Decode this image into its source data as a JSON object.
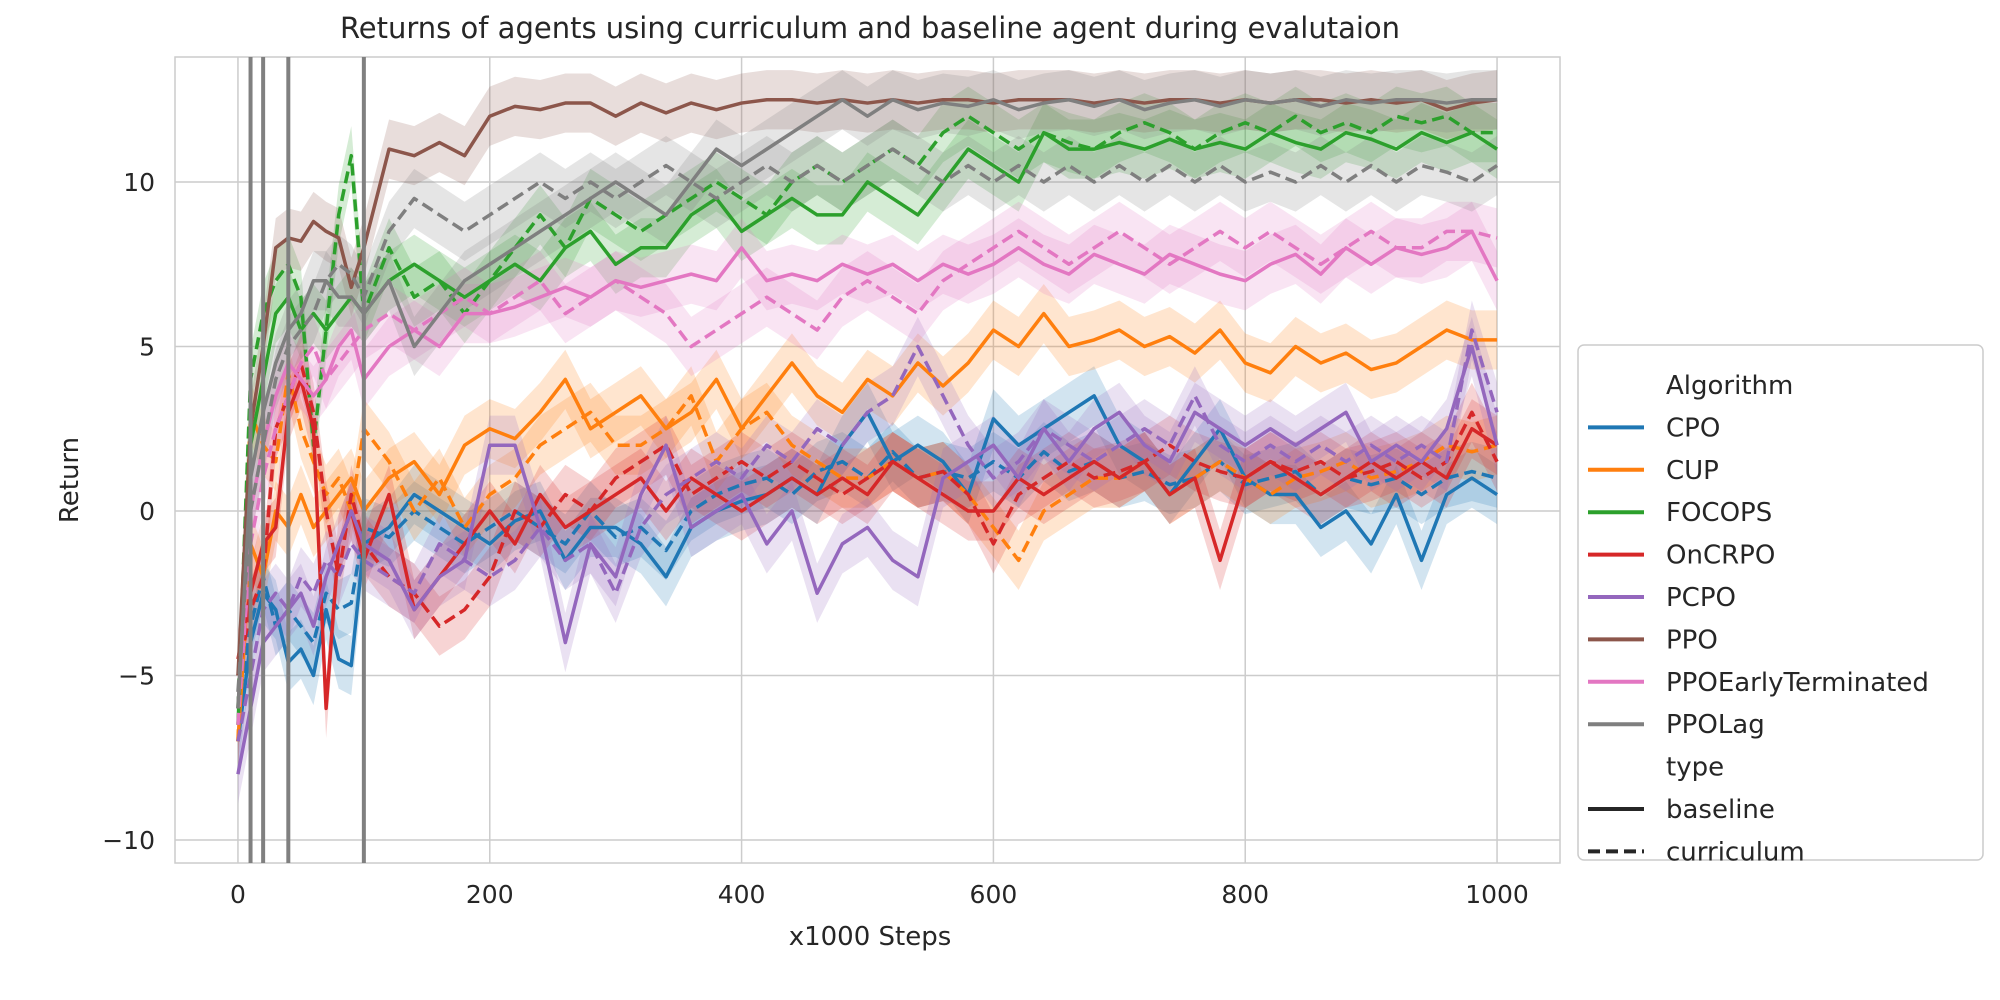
{
  "chart_data": {
    "type": "line",
    "title": "Returns of agents using curriculum and baseline agent during evalutaion",
    "xlabel": "x1000 Steps",
    "ylabel": "Return",
    "xlim": [
      -50,
      1050
    ],
    "ylim": [
      -10.7,
      13.8
    ],
    "xticks": [
      0,
      200,
      400,
      600,
      800,
      1000
    ],
    "xtick_labels": [
      "0",
      "200",
      "400",
      "600",
      "800",
      "1000"
    ],
    "yticks": [
      -10,
      -5,
      0,
      5,
      10
    ],
    "ytick_labels": [
      "−10",
      "−5",
      "0",
      "5",
      "10"
    ],
    "grid": true,
    "legend_position": "right, outside plot",
    "vertical_lines": [
      10,
      20,
      40,
      100
    ],
    "legend": {
      "algorithm_title": "Algorithm",
      "type_title": "type",
      "type_entries": [
        {
          "label": "baseline",
          "dash": "solid"
        },
        {
          "label": "curriculum",
          "dash": "dashed"
        }
      ]
    },
    "x": [
      0,
      10,
      20,
      30,
      40,
      50,
      60,
      70,
      80,
      90,
      100,
      120,
      140,
      160,
      180,
      200,
      220,
      240,
      260,
      280,
      300,
      320,
      340,
      360,
      380,
      400,
      420,
      440,
      460,
      480,
      500,
      520,
      540,
      560,
      580,
      600,
      620,
      640,
      660,
      680,
      700,
      720,
      740,
      760,
      780,
      800,
      820,
      840,
      860,
      880,
      900,
      920,
      940,
      960,
      980,
      1000
    ],
    "series": [
      {
        "name": "CPO",
        "color": "#1f77b4",
        "type": "baseline",
        "values": [
          -7,
          -4,
          -2.5,
          -3,
          -4.6,
          -4.2,
          -5,
          -3,
          -4.5,
          -4.7,
          -1,
          -0.5,
          0.5,
          0,
          -0.5,
          -1,
          -0.3,
          0,
          -1.5,
          -0.5,
          -0.5,
          -1,
          -2,
          -0.5,
          0,
          0.3,
          0.5,
          1,
          0.5,
          2,
          3,
          1.5,
          2,
          1.5,
          0.5,
          2.8,
          2,
          2.5,
          3,
          3.5,
          2,
          1.5,
          0.5,
          1.5,
          2.5,
          1,
          0.5,
          0.5,
          -0.5,
          0,
          -1,
          0.5,
          -1.5,
          0.5,
          1,
          0.5
        ]
      },
      {
        "name": "CPO",
        "color": "#1f77b4",
        "type": "curriculum",
        "values": [
          -6,
          -3.5,
          -2,
          -3.5,
          -3,
          -3.5,
          -4,
          -2.5,
          -3,
          -2.8,
          -0.5,
          -0.8,
          0,
          -0.5,
          -1,
          -0.5,
          0,
          -0.5,
          -1,
          0,
          -0.8,
          -0.5,
          -1.2,
          0,
          0.5,
          0.8,
          1,
          0.5,
          1.2,
          1.5,
          1,
          1.8,
          1,
          1.2,
          1,
          1.5,
          1,
          1.8,
          1.2,
          1.5,
          1,
          1.2,
          0.8,
          1,
          1.5,
          0.8,
          1,
          1.2,
          0.5,
          1,
          0.8,
          1,
          0.5,
          1,
          1.2,
          1
        ]
      },
      {
        "name": "CUP",
        "color": "#ff7f0e",
        "type": "baseline",
        "values": [
          -7,
          -1,
          -2,
          0,
          -0.5,
          0.5,
          -0.5,
          0,
          0.5,
          1,
          0,
          1,
          1.5,
          0.5,
          2,
          2.5,
          2.2,
          3,
          4,
          2.5,
          3,
          3.5,
          2.5,
          3,
          4,
          2.5,
          3.5,
          4.5,
          3.5,
          3,
          4,
          3.5,
          4.5,
          3.8,
          4.5,
          5.5,
          5,
          6,
          5,
          5.2,
          5.5,
          5,
          5.3,
          4.8,
          5.5,
          4.5,
          4.2,
          5,
          4.5,
          4.8,
          4.3,
          4.5,
          5,
          5.5,
          5.2,
          5.2
        ]
      },
      {
        "name": "CUP",
        "color": "#ff7f0e",
        "type": "curriculum",
        "values": [
          -7,
          3,
          2,
          1.5,
          4.2,
          2.5,
          1.5,
          0.5,
          1,
          0,
          2.5,
          1.5,
          0,
          1,
          -0.5,
          0.5,
          1,
          2,
          2.5,
          3,
          2,
          2,
          2.5,
          3.5,
          1.5,
          2.5,
          3,
          2,
          1.5,
          1,
          1,
          1.5,
          1,
          1.2,
          0.5,
          -0.5,
          -1.5,
          0,
          0.5,
          1,
          1,
          1.5,
          0.5,
          1,
          1.5,
          1,
          0.5,
          1,
          1.2,
          1.5,
          1,
          1.2,
          1.5,
          2,
          1.8,
          2
        ]
      },
      {
        "name": "FOCOPS",
        "color": "#2ca02c",
        "type": "baseline",
        "values": [
          -6.5,
          2,
          4,
          6,
          6.5,
          5.5,
          6,
          5.5,
          6,
          6.5,
          6,
          7,
          7.5,
          7,
          6.5,
          7,
          7.5,
          7,
          8,
          8.5,
          7.5,
          8,
          8,
          9,
          9.5,
          8.5,
          9,
          9.5,
          9,
          9,
          10,
          9.5,
          9,
          10,
          11,
          10.5,
          10,
          11.5,
          11,
          11,
          11.2,
          11,
          11.3,
          11,
          11.2,
          11,
          11.5,
          11.2,
          11,
          11.5,
          11.3,
          11,
          11.5,
          11.2,
          11.5,
          11
        ]
      },
      {
        "name": "FOCOPS",
        "color": "#2ca02c",
        "type": "curriculum",
        "values": [
          -6,
          4,
          6,
          7,
          7.5,
          6.5,
          2,
          5.5,
          9,
          10.8,
          6,
          8,
          6.5,
          7,
          6,
          7,
          8,
          9,
          8,
          9.5,
          9,
          8.5,
          9,
          9.5,
          10,
          9.5,
          9,
          10,
          10.5,
          10,
          10.5,
          11,
          10.5,
          11.5,
          12,
          11.5,
          11,
          11.5,
          11.2,
          11,
          11.5,
          11.8,
          11.5,
          11,
          11.5,
          11.8,
          11.5,
          12,
          11.5,
          11.8,
          11.5,
          12,
          11.8,
          12,
          11.5,
          11.5
        ]
      },
      {
        "name": "OnCRPO",
        "color": "#d62728",
        "type": "baseline",
        "values": [
          -4.5,
          -2.5,
          -1,
          -0.5,
          3,
          4,
          2.5,
          -6,
          -1,
          0,
          -1.5,
          0.5,
          -3,
          -2,
          -1,
          0,
          -1,
          0.5,
          -0.5,
          0,
          0.5,
          1,
          0,
          1,
          0.5,
          0,
          0.5,
          1,
          0.5,
          1,
          0.5,
          1.5,
          1,
          0.5,
          0,
          0,
          1,
          0.5,
          1,
          1.5,
          1,
          1.5,
          0.5,
          1,
          -1.5,
          1,
          1.5,
          1,
          0.5,
          1,
          1.5,
          1,
          1.5,
          1,
          2.5,
          2
        ]
      },
      {
        "name": "OnCRPO",
        "color": "#d62728",
        "type": "curriculum",
        "values": [
          -5,
          -3,
          -2,
          2.5,
          3.5,
          4.5,
          3,
          0,
          -2,
          0.5,
          -1,
          -2,
          -2.5,
          -3.5,
          -3,
          -2,
          0,
          -0.5,
          0.5,
          0,
          1,
          1.5,
          2,
          0.5,
          1,
          1.5,
          1,
          1.5,
          1,
          0.5,
          1,
          1.5,
          1,
          1.2,
          0.5,
          -1,
          0.5,
          1,
          1.5,
          1,
          1.2,
          1.5,
          2,
          1.5,
          1.2,
          1,
          1.5,
          1.2,
          1.5,
          1,
          1.2,
          1.5,
          1,
          1.5,
          3,
          1.5
        ]
      },
      {
        "name": "PCPO",
        "color": "#9467bd",
        "type": "baseline",
        "values": [
          -8,
          -6,
          -4,
          -3.5,
          -3,
          -2.5,
          -3.5,
          -2,
          -1,
          0,
          -1,
          -1.5,
          -3,
          -2,
          -1.5,
          2,
          2,
          -0.5,
          -4,
          -1,
          -2,
          0.5,
          2,
          -0.5,
          0,
          0.5,
          -1,
          0,
          -2.5,
          -1,
          -0.5,
          -1.5,
          -2,
          1,
          1.5,
          2,
          1,
          2.5,
          1.5,
          2.5,
          3,
          2,
          1.5,
          3,
          2.5,
          2,
          2.5,
          2,
          2.5,
          3,
          1.5,
          2,
          1.5,
          2.5,
          5,
          2
        ]
      },
      {
        "name": "PCPO",
        "color": "#9467bd",
        "type": "curriculum",
        "values": [
          -7,
          -5,
          -3,
          -2.5,
          -3,
          -2,
          -2.5,
          -1.5,
          -2,
          -1,
          -1.5,
          -2,
          -2.5,
          -1,
          -1.5,
          -2,
          -1.5,
          -0.5,
          -1.5,
          -1,
          -2.5,
          -0.5,
          0.5,
          1,
          1.5,
          1,
          2,
          1.5,
          2.5,
          2,
          3,
          3.5,
          5,
          3.5,
          2,
          1,
          1.5,
          2.5,
          2,
          1.5,
          2,
          2.5,
          2,
          3.5,
          2,
          1.5,
          2,
          1.5,
          2,
          1.5,
          2,
          1.5,
          2,
          1.5,
          5.5,
          3
        ]
      },
      {
        "name": "PPO",
        "color": "#8c564b",
        "type": "baseline",
        "values": [
          -5,
          2.5,
          5,
          8,
          8.3,
          8.2,
          8.8,
          8.5,
          8.3,
          6.8,
          8,
          11,
          10.8,
          11.2,
          10.8,
          12,
          12.3,
          12.2,
          12.4,
          12.4,
          12,
          12.4,
          12.1,
          12.4,
          12.2,
          12.4,
          12.5,
          12.5,
          12.4,
          12.5,
          12.4,
          12.5,
          12.4,
          12.5,
          12.5,
          12.4,
          12.5,
          12.5,
          12.5,
          12.4,
          12.5,
          12.4,
          12.5,
          12.5,
          12.4,
          12.5,
          12.4,
          12.5,
          12.5,
          12.4,
          12.5,
          12.4,
          12.5,
          12.2,
          12.4,
          12.5
        ]
      },
      {
        "name": "PPOEarlyTerminated",
        "color": "#e377c2",
        "type": "baseline",
        "values": [
          -6,
          0,
          2,
          3.5,
          4.5,
          4,
          3.5,
          4,
          5,
          5.5,
          4,
          5,
          5.5,
          5,
          6,
          6,
          6.2,
          6.5,
          6.8,
          6.5,
          7,
          6.8,
          7,
          7.2,
          7,
          8,
          7,
          7.2,
          7,
          7.5,
          7.2,
          7.5,
          7,
          7.5,
          7.2,
          7.5,
          8,
          7.5,
          7.2,
          7.8,
          7.5,
          7.2,
          7.8,
          7.5,
          7.2,
          7,
          7.5,
          7.8,
          7.2,
          8,
          7.5,
          8,
          7.8,
          8,
          8.5,
          7
        ]
      },
      {
        "name": "PPOEarlyTerminated",
        "color": "#e377c2",
        "type": "curriculum",
        "values": [
          -6.5,
          -1,
          1,
          2.5,
          3.5,
          4.5,
          5,
          4,
          4.5,
          5,
          5.5,
          6,
          5.5,
          6,
          6.5,
          6,
          6.5,
          7,
          6,
          6.5,
          7,
          6.5,
          6,
          5,
          5.5,
          6,
          6.5,
          6,
          5.5,
          6.5,
          7,
          6.5,
          6,
          7,
          7.5,
          8,
          8.5,
          8,
          7.5,
          8,
          8.5,
          8,
          7.5,
          8,
          8.5,
          8,
          8.5,
          8,
          7.5,
          8,
          8.5,
          8,
          8,
          8.5,
          8.5,
          8.3
        ]
      },
      {
        "name": "PPOLag",
        "color": "#7f7f7f",
        "type": "baseline",
        "values": [
          -6,
          1,
          3,
          4.5,
          5.5,
          6,
          7,
          7,
          6.5,
          6.5,
          6,
          7,
          5,
          6,
          7,
          7.5,
          8,
          8.5,
          9,
          9.5,
          10,
          9.5,
          9,
          10,
          11,
          10.5,
          11,
          11.5,
          12,
          12.5,
          12,
          12.5,
          12.2,
          12.4,
          12.3,
          12.5,
          12.2,
          12.4,
          12.5,
          12.3,
          12.5,
          12.2,
          12.4,
          12.5,
          12.3,
          12.5,
          12.4,
          12.5,
          12.3,
          12.5,
          12.4,
          12.5,
          12.5,
          12.4,
          12.5,
          12.5
        ]
      },
      {
        "name": "PPOLag",
        "color": "#7f7f7f",
        "type": "curriculum",
        "values": [
          -5.5,
          0,
          2,
          4,
          5,
          5.5,
          6,
          7,
          7.5,
          7.2,
          6.5,
          8.5,
          9.5,
          9,
          8.5,
          9,
          9.5,
          10,
          9.5,
          10,
          9.5,
          10,
          10.5,
          10,
          9.5,
          10,
          10.5,
          10,
          10.5,
          10,
          10.5,
          11,
          10.5,
          10,
          10.5,
          10,
          10.5,
          10,
          10.5,
          10,
          10.5,
          10,
          10.5,
          10,
          10.5,
          10,
          10.3,
          10,
          10.5,
          10,
          10.5,
          10,
          10.5,
          10.3,
          10,
          10.5
        ]
      }
    ]
  }
}
